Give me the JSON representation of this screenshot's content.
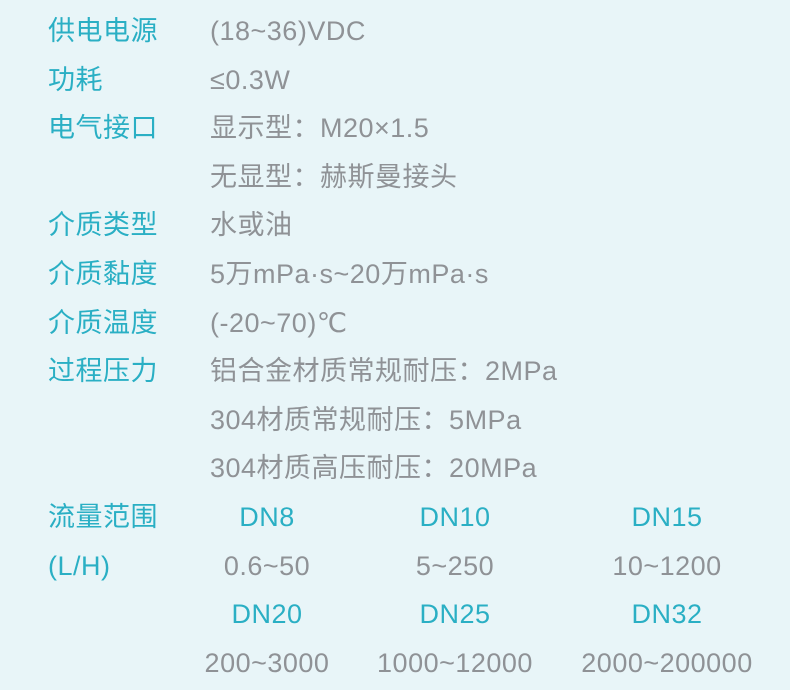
{
  "page": {
    "background_color": "#e8f5f8",
    "label_color": "#2aafc4",
    "value_color": "#8f9296"
  },
  "specs": [
    {
      "label": "供电电源",
      "values": [
        "(18~36)VDC"
      ]
    },
    {
      "label": "功耗",
      "values": [
        "≤0.3W"
      ]
    },
    {
      "label": "电气接口",
      "values": [
        "显示型：M20×1.5",
        "无显型：赫斯曼接头"
      ]
    },
    {
      "label": "介质类型",
      "values": [
        "水或油"
      ]
    },
    {
      "label": "介质黏度",
      "values": [
        "5万mPa·s~20万mPa·s"
      ]
    },
    {
      "label": "介质温度",
      "values": [
        "(-20~70)℃"
      ]
    },
    {
      "label": "过程压力",
      "values": [
        "铝合金材质常规耐压：2MPa",
        "304材质常规耐压：5MPa",
        "304材质高压耐压：20MPa"
      ]
    }
  ],
  "flow_range": {
    "label_line1": "流量范围",
    "label_line2": "(L/H)",
    "rows": [
      {
        "cells": [
          "DN8",
          "DN10",
          "DN15"
        ]
      },
      {
        "cells": [
          "0.6~50",
          "5~250",
          "10~1200"
        ]
      },
      {
        "cells": [
          "DN20",
          "DN25",
          "DN32"
        ]
      },
      {
        "cells": [
          "200~3000",
          "1000~12000",
          "2000~200000"
        ]
      }
    ]
  }
}
